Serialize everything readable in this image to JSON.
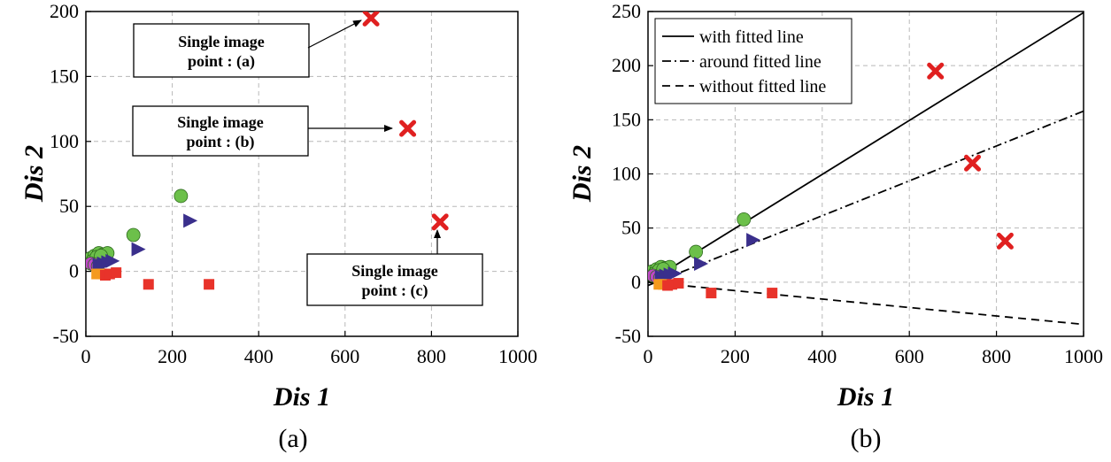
{
  "chart_data": [
    {
      "type": "scatter",
      "panel_caption": "(a)",
      "xlabel": "Dis 1",
      "ylabel": "Dis 2",
      "xlim": [
        0,
        1000
      ],
      "ylim": [
        -50,
        200
      ],
      "xticks": [
        0,
        200,
        400,
        600,
        800,
        1000
      ],
      "yticks": [
        -50,
        0,
        50,
        100,
        150,
        200
      ],
      "grid": true,
      "series": [
        {
          "name": "green circles",
          "marker": "circle",
          "color": "#6cc04a",
          "points": [
            [
              10,
              10
            ],
            [
              20,
              12
            ],
            [
              30,
              14
            ],
            [
              40,
              13
            ],
            [
              50,
              14
            ],
            [
              15,
              8
            ],
            [
              25,
              11
            ],
            [
              35,
              12
            ],
            [
              110,
              28
            ],
            [
              220,
              58
            ]
          ]
        },
        {
          "name": "purple circles",
          "marker": "circle",
          "color": "#c048c8",
          "points": [
            [
              12,
              6
            ],
            [
              20,
              5
            ],
            [
              28,
              4
            ]
          ]
        },
        {
          "name": "blue triangles",
          "marker": "triangle",
          "color": "#3a2f8c",
          "points": [
            [
              30,
              5
            ],
            [
              40,
              6
            ],
            [
              50,
              7
            ],
            [
              60,
              8
            ],
            [
              120,
              17
            ],
            [
              240,
              39
            ]
          ]
        },
        {
          "name": "orange squares",
          "marker": "square",
          "color": "#f49a1e",
          "points": [
            [
              25,
              -2
            ],
            [
              35,
              -2
            ]
          ]
        },
        {
          "name": "red squares",
          "marker": "square",
          "color": "#e8332a",
          "points": [
            [
              45,
              -3
            ],
            [
              55,
              -2
            ],
            [
              70,
              -1
            ],
            [
              145,
              -10
            ],
            [
              285,
              -10
            ]
          ]
        },
        {
          "name": "red crosses",
          "marker": "cross",
          "color": "#e02020",
          "points": [
            [
              660,
              195
            ],
            [
              745,
              110
            ],
            [
              820,
              38
            ]
          ]
        }
      ],
      "annotations": [
        {
          "line1": "Single image",
          "line2": "point : (a)",
          "target": [
            660,
            195
          ]
        },
        {
          "line1": "Single image",
          "line2": "point : (b)",
          "target": [
            745,
            110
          ]
        },
        {
          "line1": "Single image",
          "line2": "point : (c)",
          "target": [
            820,
            38
          ]
        }
      ]
    },
    {
      "type": "scatter",
      "panel_caption": "(b)",
      "xlabel": "Dis 1",
      "ylabel": "Dis 2",
      "xlim": [
        0,
        1000
      ],
      "ylim": [
        -50,
        250
      ],
      "xticks": [
        0,
        200,
        400,
        600,
        800,
        1000
      ],
      "yticks": [
        -50,
        0,
        50,
        100,
        150,
        200,
        250
      ],
      "grid": true,
      "series": [
        {
          "name": "green circles",
          "marker": "circle",
          "color": "#6cc04a",
          "points": [
            [
              10,
              10
            ],
            [
              20,
              12
            ],
            [
              30,
              14
            ],
            [
              40,
              13
            ],
            [
              50,
              14
            ],
            [
              15,
              8
            ],
            [
              25,
              11
            ],
            [
              35,
              12
            ],
            [
              110,
              28
            ],
            [
              220,
              58
            ]
          ]
        },
        {
          "name": "purple circles",
          "marker": "circle",
          "color": "#c048c8",
          "points": [
            [
              12,
              6
            ],
            [
              20,
              5
            ],
            [
              28,
              4
            ]
          ]
        },
        {
          "name": "blue triangles",
          "marker": "triangle",
          "color": "#3a2f8c",
          "points": [
            [
              30,
              5
            ],
            [
              40,
              6
            ],
            [
              50,
              7
            ],
            [
              60,
              8
            ],
            [
              120,
              17
            ],
            [
              240,
              39
            ]
          ]
        },
        {
          "name": "orange squares",
          "marker": "square",
          "color": "#f49a1e",
          "points": [
            [
              25,
              -2
            ],
            [
              35,
              -2
            ]
          ]
        },
        {
          "name": "red squares",
          "marker": "square",
          "color": "#e8332a",
          "points": [
            [
              45,
              -3
            ],
            [
              55,
              -2
            ],
            [
              70,
              -1
            ],
            [
              145,
              -10
            ],
            [
              285,
              -10
            ]
          ]
        },
        {
          "name": "red crosses",
          "marker": "cross",
          "color": "#e02020",
          "points": [
            [
              660,
              195
            ],
            [
              745,
              110
            ],
            [
              820,
              38
            ]
          ]
        }
      ],
      "lines": [
        {
          "name": "with fitted line",
          "style": "solid",
          "x": [
            0,
            1000
          ],
          "y": [
            0,
            249
          ]
        },
        {
          "name": "around fitted line",
          "style": "dashdot",
          "x": [
            0,
            1000
          ],
          "y": [
            -3,
            158
          ]
        },
        {
          "name": "without fitted line",
          "style": "dashed",
          "x": [
            0,
            1000
          ],
          "y": [
            0,
            -39
          ]
        }
      ],
      "legend": {
        "placement": "top-left",
        "entries": [
          "with fitted line",
          "around fitted line",
          "without fitted line"
        ]
      }
    }
  ]
}
